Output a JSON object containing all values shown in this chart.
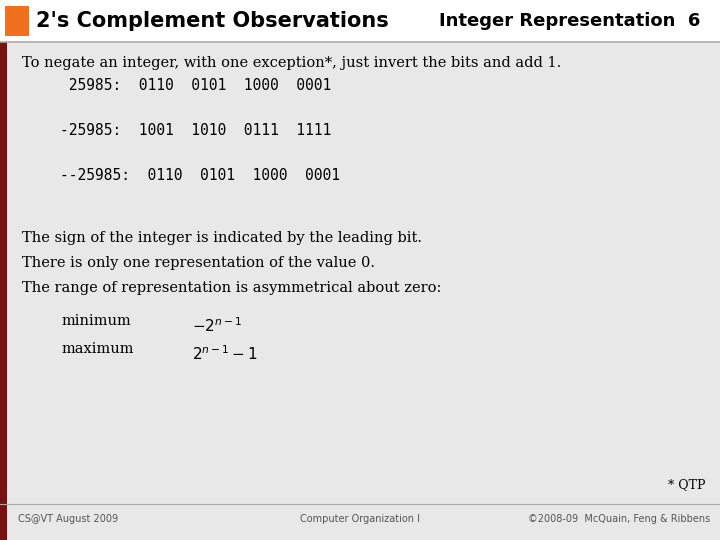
{
  "title_left": "2's Complement Observations",
  "title_right": "Integer Representation  6",
  "title_bg_color": "#FFFFFF",
  "orange_icon_color": "#F07020",
  "title_left_color": "#000000",
  "title_right_color": "#000000",
  "sidebar_color": "#7B1010",
  "bg_color": "#E8E8E8",
  "body_bg": "#E8E8E8",
  "header_separator_color": "#AAAAAA",
  "line1": "To negate an integer, with one exception*, just invert the bits and add 1.",
  "code_lines": [
    " 25985:  0110  0101  1000  0001",
    "-25985:  1001  1010  0111  1111",
    "--25985:  0110  0101  1000  0001"
  ],
  "body_lines": [
    "The sign of the integer is indicated by the leading bit.",
    "There is only one representation of the value 0.",
    "The range of representation is asymmetrical about zero:"
  ],
  "min_label": "minimum",
  "max_label": "maximum",
  "min_formula": "$-2^{n-1}$",
  "max_formula": "$2^{n-1}-1$",
  "qtp_text": "* QTP",
  "footer_left": "CS@VT August 2009",
  "footer_center": "Computer Organization I",
  "footer_right": "©2008-09  McQuain, Feng & Ribbens",
  "footer_color": "#555555"
}
